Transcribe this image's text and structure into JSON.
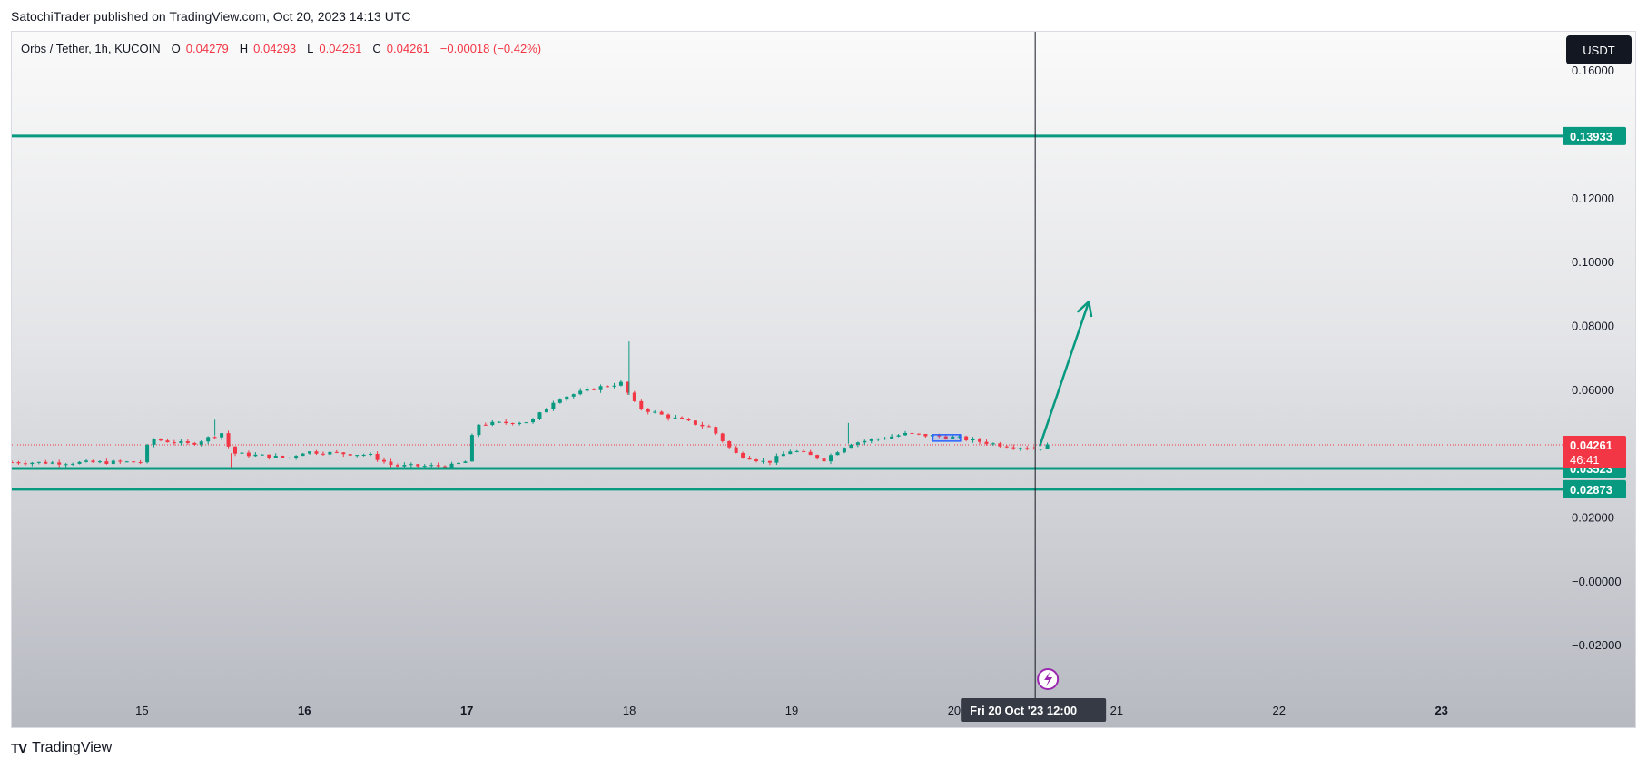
{
  "header": {
    "published_line": "SatochiTrader published on TradingView.com, Oct 20, 2023 14:13 UTC"
  },
  "legend": {
    "symbol": "Orbs / Tether, 1h, KUCOIN",
    "open_label": "O",
    "open_value": "0.04279",
    "high_label": "H",
    "high_value": "0.04293",
    "low_label": "L",
    "low_value": "0.04261",
    "close_label": "C",
    "close_value": "0.04261",
    "change": "−0.00018 (−0.42%)"
  },
  "currency_button": "USDT",
  "footer": {
    "brand": "TradingView",
    "logo_mark": "TV"
  },
  "colors": {
    "up": "#089981",
    "down": "#f23645",
    "level_line": "#089981",
    "arrow": "#089981",
    "crosshair": "#131722",
    "price_line": "#f23645",
    "box": "#2962ff"
  },
  "chart_data": {
    "type": "candlestick",
    "title": "Orbs / Tether, 1h, KUCOIN",
    "ylim": [
      -0.035,
      0.172
    ],
    "y_ticks": [
      "0.16000",
      "0.12000",
      "0.10000",
      "0.08000",
      "0.06000",
      "0.02000",
      "−0.00000",
      "−0.02000"
    ],
    "y_tick_values": [
      0.16,
      0.12,
      0.1,
      0.08,
      0.06,
      0.02,
      0.0,
      -0.02
    ],
    "x_ticks": [
      {
        "label": "15",
        "day": 15,
        "bold": false
      },
      {
        "label": "16",
        "day": 16,
        "bold": true
      },
      {
        "label": "17",
        "day": 17,
        "bold": true
      },
      {
        "label": "18",
        "day": 18,
        "bold": false
      },
      {
        "label": "19",
        "day": 19,
        "bold": false
      },
      {
        "label": "20",
        "day": 20,
        "bold": false
      },
      {
        "label": "21",
        "day": 21,
        "bold": false
      },
      {
        "label": "22",
        "day": 22,
        "bold": false
      },
      {
        "label": "23",
        "day": 23,
        "bold": true
      }
    ],
    "x_range_days": [
      14.2,
      23.78
    ],
    "horizontal_levels": [
      {
        "price": 0.13933,
        "label": "0.13933"
      },
      {
        "price": 0.03523,
        "label": "0.03523"
      },
      {
        "price": 0.02873,
        "label": "0.02873"
      }
    ],
    "last_price": {
      "price": 0.04261,
      "label": "0.04261",
      "countdown": "46:41"
    },
    "crosshair": {
      "day": 20.5,
      "label": "Fri 20 Oct '23   12:00"
    },
    "arrow": {
      "from": [
        20.53,
        0.0425
      ],
      "to": [
        20.83,
        0.0875
      ]
    },
    "highlight_box": {
      "from_day": 19.87,
      "to_day": 20.04,
      "low": 0.0438,
      "high": 0.0458
    },
    "candle_anchors": [
      [
        14.2,
        0.0372
      ],
      [
        14.5,
        0.037
      ],
      [
        15.0,
        0.0373
      ],
      [
        15.05,
        0.0445
      ],
      [
        15.3,
        0.0428
      ],
      [
        15.5,
        0.0465
      ],
      [
        15.55,
        0.04
      ],
      [
        15.9,
        0.0385
      ],
      [
        16.0,
        0.0405
      ],
      [
        16.4,
        0.0395
      ],
      [
        16.55,
        0.036
      ],
      [
        16.9,
        0.036
      ],
      [
        17.0,
        0.0375
      ],
      [
        17.05,
        0.049
      ],
      [
        17.4,
        0.05
      ],
      [
        17.55,
        0.057
      ],
      [
        17.8,
        0.0605
      ],
      [
        17.95,
        0.062
      ],
      [
        18.05,
        0.0545
      ],
      [
        18.2,
        0.052
      ],
      [
        18.5,
        0.048
      ],
      [
        18.65,
        0.04
      ],
      [
        18.85,
        0.037
      ],
      [
        19.0,
        0.041
      ],
      [
        19.2,
        0.038
      ],
      [
        19.35,
        0.043
      ],
      [
        19.7,
        0.046
      ],
      [
        20.0,
        0.045
      ],
      [
        20.3,
        0.0425
      ],
      [
        20.5,
        0.0415
      ],
      [
        20.6,
        0.0426
      ]
    ],
    "notable_wicks": [
      {
        "day": 17.07,
        "high": 0.061
      },
      {
        "day": 18.0,
        "high": 0.075
      },
      {
        "day": 15.45,
        "high": 0.0505
      },
      {
        "day": 15.55,
        "low": 0.0355
      },
      {
        "day": 19.35,
        "high": 0.0495
      }
    ]
  }
}
